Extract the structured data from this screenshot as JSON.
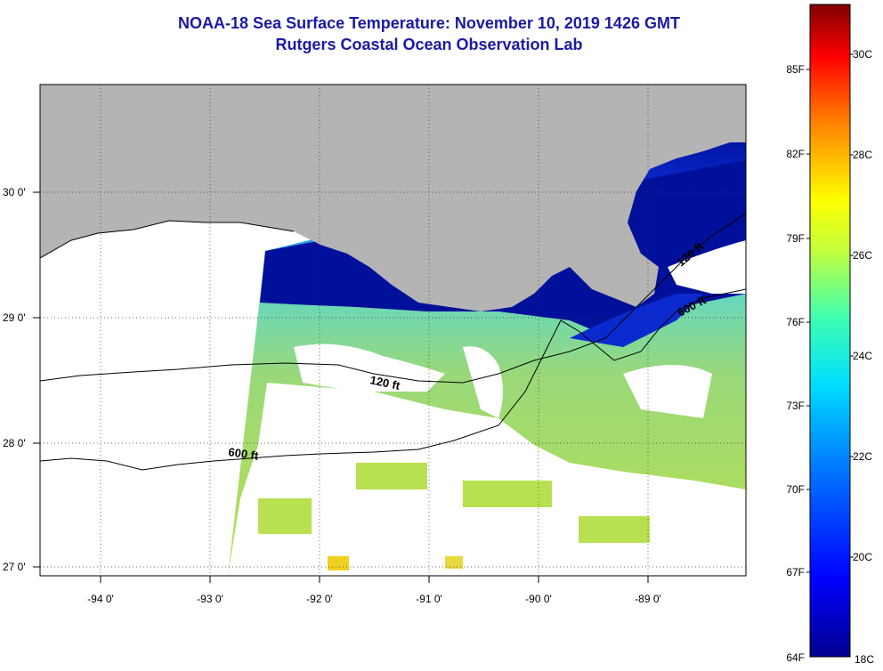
{
  "title": "NOAA-18 Sea Surface Temperature:  November 10, 2019 1426 GMT",
  "subtitle": "Rutgers Coastal Ocean Observation Lab",
  "map": {
    "lon_ticks": [
      "-94 0'",
      "-93 0'",
      "-92 0'",
      "-91 0'",
      "-90 0'",
      "-89 0'"
    ],
    "lat_ticks": [
      "30 0'",
      "29 0'",
      "28 0'",
      "27 0'"
    ],
    "contours": [
      "120 ft",
      "120 ft",
      "600 ft",
      "600 ft"
    ],
    "colors": {
      "land": "#b4b4b4",
      "nodata": "#ffffff",
      "cold": "#00109a",
      "mid": "#1a6cf0",
      "warm": "#9ad878"
    }
  },
  "colorbar": {
    "fahrenheit": [
      "85F",
      "82F",
      "79F",
      "76F",
      "73F",
      "70F",
      "67F",
      "64F"
    ],
    "celsius": [
      "30C",
      "28C",
      "26C",
      "24C",
      "22C",
      "20C",
      "18C"
    ]
  }
}
